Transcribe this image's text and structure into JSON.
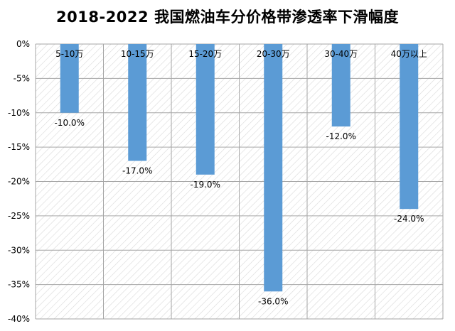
{
  "chart_data": {
    "type": "bar",
    "title": "2018-2022 我国燃油车分价格带渗透率下滑幅度",
    "categories": [
      "5-10万",
      "10-15万",
      "15-20万",
      "20-30万",
      "30-40万",
      "40万以上"
    ],
    "values": [
      -10.0,
      -17.0,
      -19.0,
      -36.0,
      -12.0,
      -24.0
    ],
    "value_labels": [
      "-10.0%",
      "-17.0%",
      "-19.0%",
      "-36.0%",
      "-12.0%",
      "-24.0%"
    ],
    "yticks": [
      0,
      -5,
      -10,
      -15,
      -20,
      -25,
      -30,
      -35,
      -40
    ],
    "ytick_labels": [
      "0%",
      "-5%",
      "-10%",
      "-15%",
      "-20%",
      "-25%",
      "-30%",
      "-35%",
      "-40%"
    ],
    "ylim": [
      -40,
      0
    ],
    "xlabel": "",
    "ylabel": "",
    "grid": true,
    "legend": "none",
    "bar_color": "#5B9BD5",
    "background_pattern": "diagonal-hatch",
    "hatch_color": "#D9D9D9",
    "gridline_color": "#A6A6A6"
  }
}
